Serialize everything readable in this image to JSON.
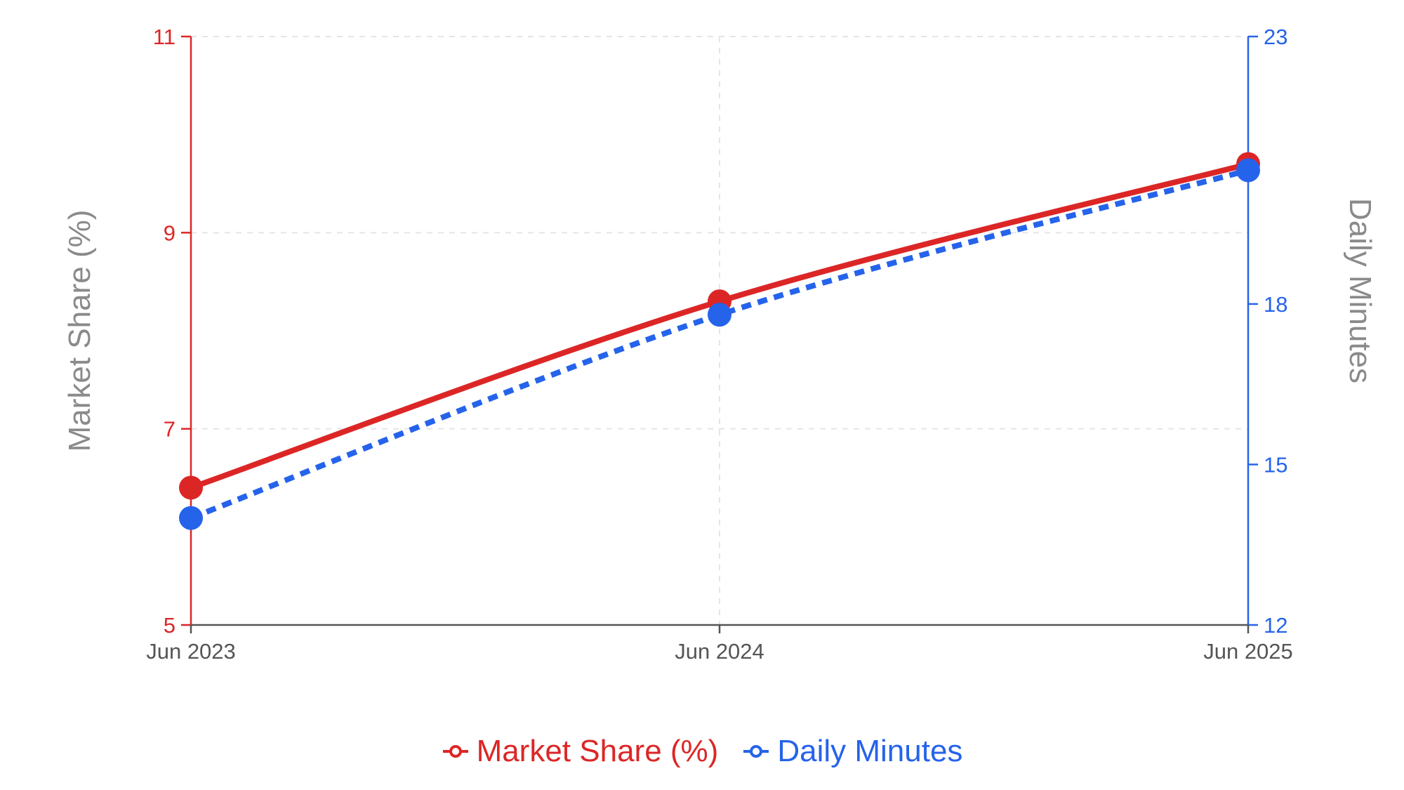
{
  "chart_data": {
    "type": "line",
    "x": [
      "Jun 2023",
      "Jun 2024",
      "Jun 2025"
    ],
    "series": [
      {
        "name": "Market Share (%)",
        "axis": "left",
        "values": [
          6.4,
          8.3,
          9.7
        ],
        "color": "#dc2626",
        "line_style": "solid"
      },
      {
        "name": "Daily Minutes",
        "axis": "right",
        "values": [
          14.0,
          17.8,
          20.5
        ],
        "color": "#2563eb",
        "line_style": "dashed"
      }
    ],
    "y_left": {
      "label": "Market Share (%)",
      "range": [
        5,
        11
      ],
      "ticks": [
        "5",
        "7",
        "9",
        "11"
      ],
      "color": "#dc2626"
    },
    "y_right": {
      "label": "Daily Minutes",
      "range": [
        12,
        23
      ],
      "ticks": [
        "12",
        "15",
        "18",
        "23"
      ],
      "color": "#2563eb"
    },
    "grid": true,
    "legend_position": "bottom-center"
  }
}
